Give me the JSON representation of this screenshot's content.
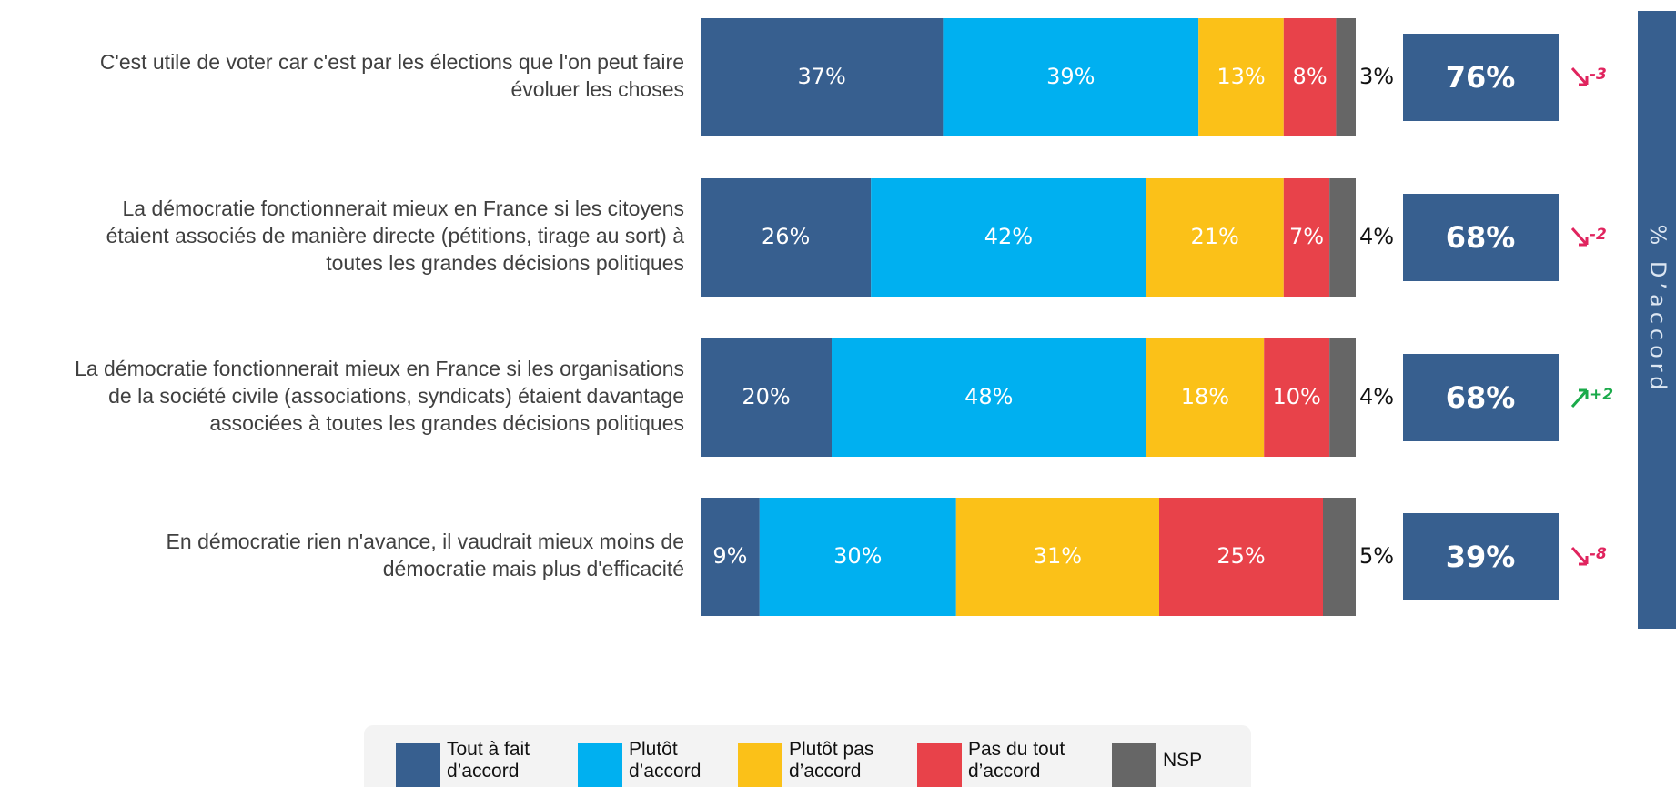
{
  "chart_data": {
    "type": "stacked-bar",
    "orientation": "horizontal",
    "categories": [
      [
        "C'est utile de voter car c'est par les élections que l'on peut faire",
        "évoluer les choses"
      ],
      [
        "La démocratie fonctionnerait mieux en France si les citoyens",
        "étaient associés de manière directe (pétitions, tirage au sort) à",
        "toutes les grandes décisions politiques"
      ],
      [
        "La démocratie fonctionnerait mieux en France si les organisations",
        "de la société civile (associations, syndicats) étaient davantage",
        "associées à toutes les grandes décisions politiques"
      ],
      [
        "En démocratie rien n'avance, il vaudrait mieux moins de",
        "démocratie mais plus d'efficacité"
      ]
    ],
    "xlim": [
      0,
      100
    ],
    "label_color": "#ffffff",
    "series": [
      {
        "name": "Tout à fait d’accord",
        "color": "#375f8f",
        "values": [
          37,
          26,
          20,
          9
        ],
        "value_labels": [
          "37%",
          "26%",
          "20%",
          "9%"
        ]
      },
      {
        "name": "Plutôt d’accord",
        "color": "#00b0f0",
        "values": [
          39,
          42,
          48,
          30
        ],
        "value_labels": [
          "39%",
          "42%",
          "48%",
          "30%"
        ]
      },
      {
        "name": "Plutôt pas d’accord",
        "color": "#fbc118",
        "values": [
          13,
          21,
          18,
          31
        ],
        "value_labels": [
          "13%",
          "21%",
          "18%",
          "31%"
        ]
      },
      {
        "name": "Pas du tout d’accord",
        "color": "#e8424a",
        "values": [
          8,
          7,
          10,
          25
        ],
        "value_labels": [
          "8%",
          "7%",
          "10%",
          "25%"
        ]
      },
      {
        "name": "NSP",
        "color": "#666666",
        "label_position": "outside",
        "values": [
          3,
          4,
          4,
          5
        ],
        "value_labels": [
          "3%",
          "4%",
          "4%",
          "5%"
        ]
      }
    ],
    "totals": {
      "title": "% D’accord",
      "color": "#375f8f",
      "values": [
        76,
        68,
        68,
        39
      ],
      "value_labels": [
        "76%",
        "68%",
        "68%",
        "39%"
      ],
      "changes": [
        -3,
        -2,
        2,
        -8
      ],
      "change_labels": [
        "-3",
        "-2",
        "+2",
        "-8"
      ],
      "up_color": "#1aaa4a",
      "down_color": "#e0245e"
    }
  }
}
